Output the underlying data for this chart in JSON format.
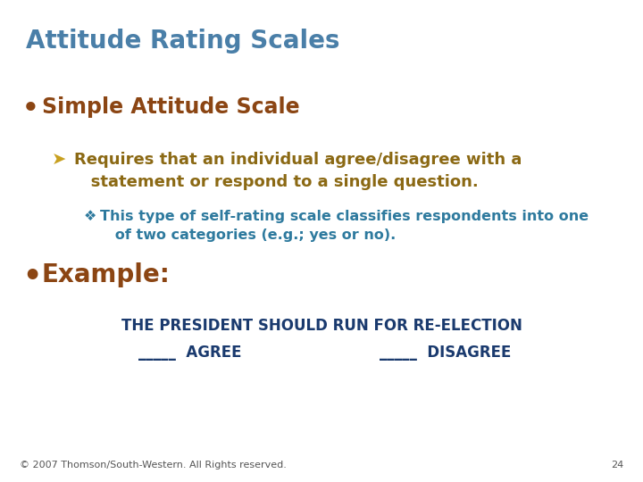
{
  "title": "Attitude Rating Scales",
  "title_color": "#4a7fa8",
  "title_fontsize": 20,
  "bullet1_text": "Simple Attitude Scale",
  "bullet1_color": "#8B4513",
  "bullet1_fontsize": 17,
  "sub1_line1": "Requires that an individual agree/disagree with a",
  "sub1_line2": "statement or respond to a single question.",
  "sub1_color": "#8B6914",
  "sub1_fontsize": 13,
  "sub2_line1": "This type of self-rating scale classifies respondents into one",
  "sub2_line2": "of two categories (e.g.; yes or no).",
  "sub2_color": "#2e7a9e",
  "sub2_fontsize": 11.5,
  "bullet2_text": "Example:",
  "bullet2_color": "#8B4513",
  "bullet2_fontsize": 20,
  "example_line1": "THE PRESIDENT SHOULD RUN FOR RE-ELECTION",
  "example_line2_left": "_____  AGREE",
  "example_line2_right": "_____  DISAGREE",
  "example_color": "#1a3a6e",
  "example_fontsize": 12,
  "footer_text": "© 2007 Thomson/South-Western. All Rights reserved.",
  "footer_color": "#555555",
  "footer_fontsize": 8,
  "page_num": "24",
  "bg_color": "#ffffff"
}
